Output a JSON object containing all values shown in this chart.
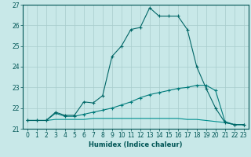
{
  "x_values": [
    0,
    1,
    2,
    3,
    4,
    5,
    6,
    7,
    8,
    9,
    10,
    11,
    12,
    13,
    14,
    15,
    16,
    17,
    18,
    19,
    20,
    21,
    22,
    23
  ],
  "line1": [
    21.4,
    21.4,
    21.4,
    21.8,
    21.65,
    21.65,
    22.3,
    22.25,
    22.6,
    24.5,
    25.0,
    25.8,
    25.9,
    26.85,
    26.45,
    26.45,
    26.45,
    25.8,
    24.0,
    22.95,
    22.0,
    21.3,
    21.2,
    21.2
  ],
  "line2": [
    21.4,
    21.4,
    21.4,
    21.75,
    21.6,
    21.6,
    21.7,
    21.8,
    21.9,
    22.0,
    22.15,
    22.3,
    22.5,
    22.65,
    22.75,
    22.85,
    22.95,
    23.0,
    23.1,
    23.1,
    22.85,
    21.35,
    21.2,
    21.2
  ],
  "line3": [
    21.4,
    21.4,
    21.4,
    21.45,
    21.45,
    21.45,
    21.45,
    21.5,
    21.5,
    21.5,
    21.5,
    21.5,
    21.5,
    21.5,
    21.5,
    21.5,
    21.5,
    21.45,
    21.45,
    21.4,
    21.35,
    21.3,
    21.2,
    21.2
  ],
  "line1_color": "#006666",
  "line2_color": "#007a7a",
  "line3_color": "#008f8f",
  "bg_color": "#c8e8e8",
  "grid_color": "#a8cccc",
  "axis_color": "#005555",
  "xlabel": "Humidex (Indice chaleur)",
  "ylim": [
    21,
    27
  ],
  "xlim_min": -0.5,
  "xlim_max": 23.5,
  "yticks": [
    21,
    22,
    23,
    24,
    25,
    26,
    27
  ],
  "xticks": [
    0,
    1,
    2,
    3,
    4,
    5,
    6,
    7,
    8,
    9,
    10,
    11,
    12,
    13,
    14,
    15,
    16,
    17,
    18,
    19,
    20,
    21,
    22,
    23
  ],
  "marker": "+",
  "markersize": 3,
  "linewidth": 0.8,
  "tick_labelsize": 5.5,
  "xlabel_fontsize": 6.0
}
